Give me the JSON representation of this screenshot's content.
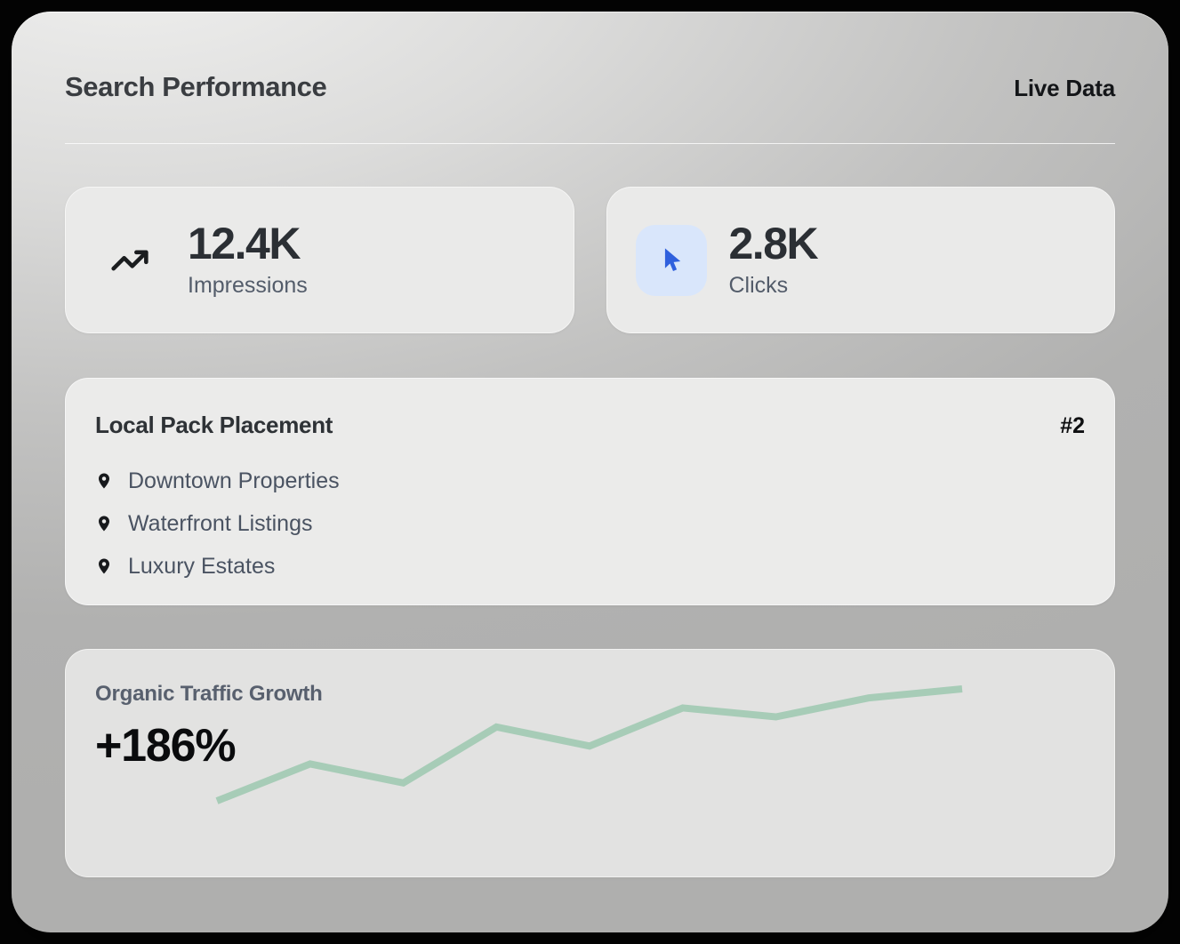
{
  "header": {
    "title": "Search Performance",
    "badge": "Live Data"
  },
  "stats": [
    {
      "value": "12.4K",
      "label": "Impressions",
      "icon": "trending-up"
    },
    {
      "value": "2.8K",
      "label": "Clicks",
      "icon": "cursor-pointer"
    }
  ],
  "local_pack": {
    "title": "Local Pack Placement",
    "rank": "#2",
    "items": [
      {
        "label": "Downtown Properties",
        "icon": "map-pin"
      },
      {
        "label": "Waterfront Listings",
        "icon": "map-pin"
      },
      {
        "label": "Luxury Estates",
        "icon": "map-pin"
      }
    ]
  },
  "growth": {
    "title": "Organic Traffic Growth",
    "value": "+186%"
  },
  "chart_data": {
    "type": "line",
    "title": "Organic Traffic Growth",
    "annotation": "+186%",
    "x": [
      1,
      2,
      3,
      4,
      5,
      6,
      7,
      8,
      9
    ],
    "x_labels": [],
    "series": [
      {
        "name": "organic-traffic-normalized",
        "values": [
          0,
          33,
          16,
          66,
          49,
          83,
          75,
          92,
          100
        ]
      }
    ],
    "ylim": [
      0,
      100
    ],
    "axes_visible": false,
    "grid": false,
    "legend": false,
    "line_color": "#a7ccb7"
  },
  "colors": {
    "accent_blue": "#2f60dd",
    "accent_blue_bg": "#d9e6fb",
    "chart_line": "#a7ccb7"
  }
}
